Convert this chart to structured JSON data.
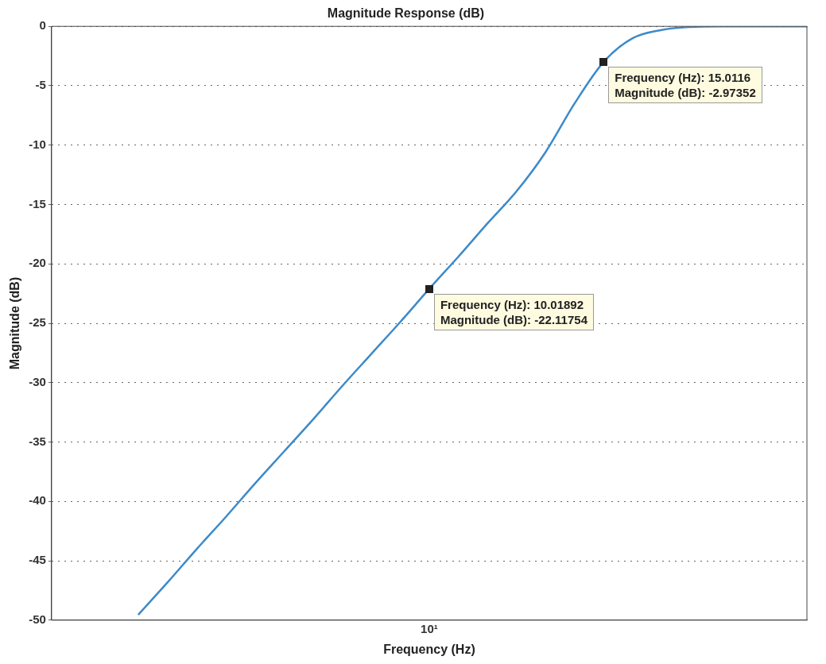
{
  "chart_data": {
    "type": "line",
    "title": "Magnitude Response (dB)",
    "xlabel": "Frequency (Hz)",
    "ylabel": "Magnitude (dB)",
    "categories": [
      null,
      null,
      null,
      null,
      null,
      null,
      null,
      null,
      null,
      null,
      null,
      null,
      null,
      "10¹",
      null,
      null,
      null,
      null,
      null,
      null,
      null,
      null,
      null,
      null,
      null,
      null,
      null
    ],
    "ylim": [
      -50,
      0
    ],
    "yticks": [
      -50,
      -45,
      -40,
      -35,
      -30,
      -25,
      -20,
      -15,
      -10,
      -5,
      0
    ],
    "grid": "y",
    "legend": false,
    "marker": "none",
    "line_style": "solid",
    "series": [
      {
        "color": "#3d8ac9",
        "values": [
          null,
          null,
          null,
          -49.5,
          -46.8,
          -44.0,
          -41.3,
          -38.5,
          -35.8,
          -33.1,
          -30.3,
          -27.6,
          -24.9,
          -22.1,
          -19.4,
          -16.6,
          -13.9,
          -10.6,
          -6.5,
          -3.0,
          -1.0,
          -0.3,
          -0.05,
          0,
          0,
          0,
          0
        ]
      }
    ],
    "annotations": [
      "Frequency (Hz): 15.0116\nMagnitude (dB): -2.97352",
      {
        "text": "Frequency (Hz): 10.01892\nMagnitude (dB): -22.11754",
        "x": "10¹",
        "y": -22.1
      }
    ]
  }
}
